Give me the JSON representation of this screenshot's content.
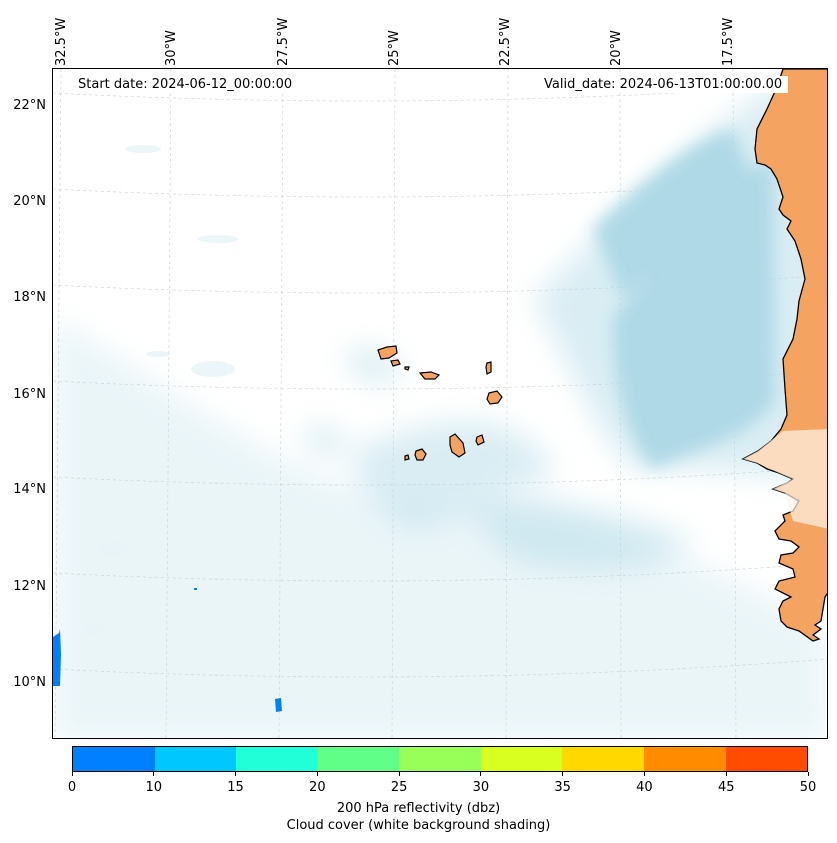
{
  "map": {
    "start_date": "Start date: 2024-06-12_00:00:00",
    "valid_date": "Valid_date: 2024-06-13T01:00:00.00",
    "lon_labels": [
      "32.5°W",
      "30°W",
      "27.5°W",
      "25°W",
      "22.5°W",
      "20°W",
      "17.5°W"
    ],
    "lat_labels": [
      "22°N",
      "20°N",
      "18°N",
      "16°N",
      "14°N",
      "12°N",
      "10°N"
    ],
    "land_color": "#f4a460",
    "cloud_color": "#add8e6",
    "region": "Cabo Verde islands and West African coast (Senegal / Mauritania)"
  },
  "colorbar": {
    "ticks": [
      "0",
      "10",
      "15",
      "20",
      "25",
      "30",
      "35",
      "40",
      "45",
      "50"
    ],
    "colors": [
      "#0080ff",
      "#00c8ff",
      "#20ffd8",
      "#60ff88",
      "#98ff58",
      "#d8ff20",
      "#ffd800",
      "#ff8c00",
      "#ff4c00"
    ],
    "label_line1": "200 hPa reflectivity (dbz)",
    "label_line2": "Cloud cover (white background shading)"
  }
}
